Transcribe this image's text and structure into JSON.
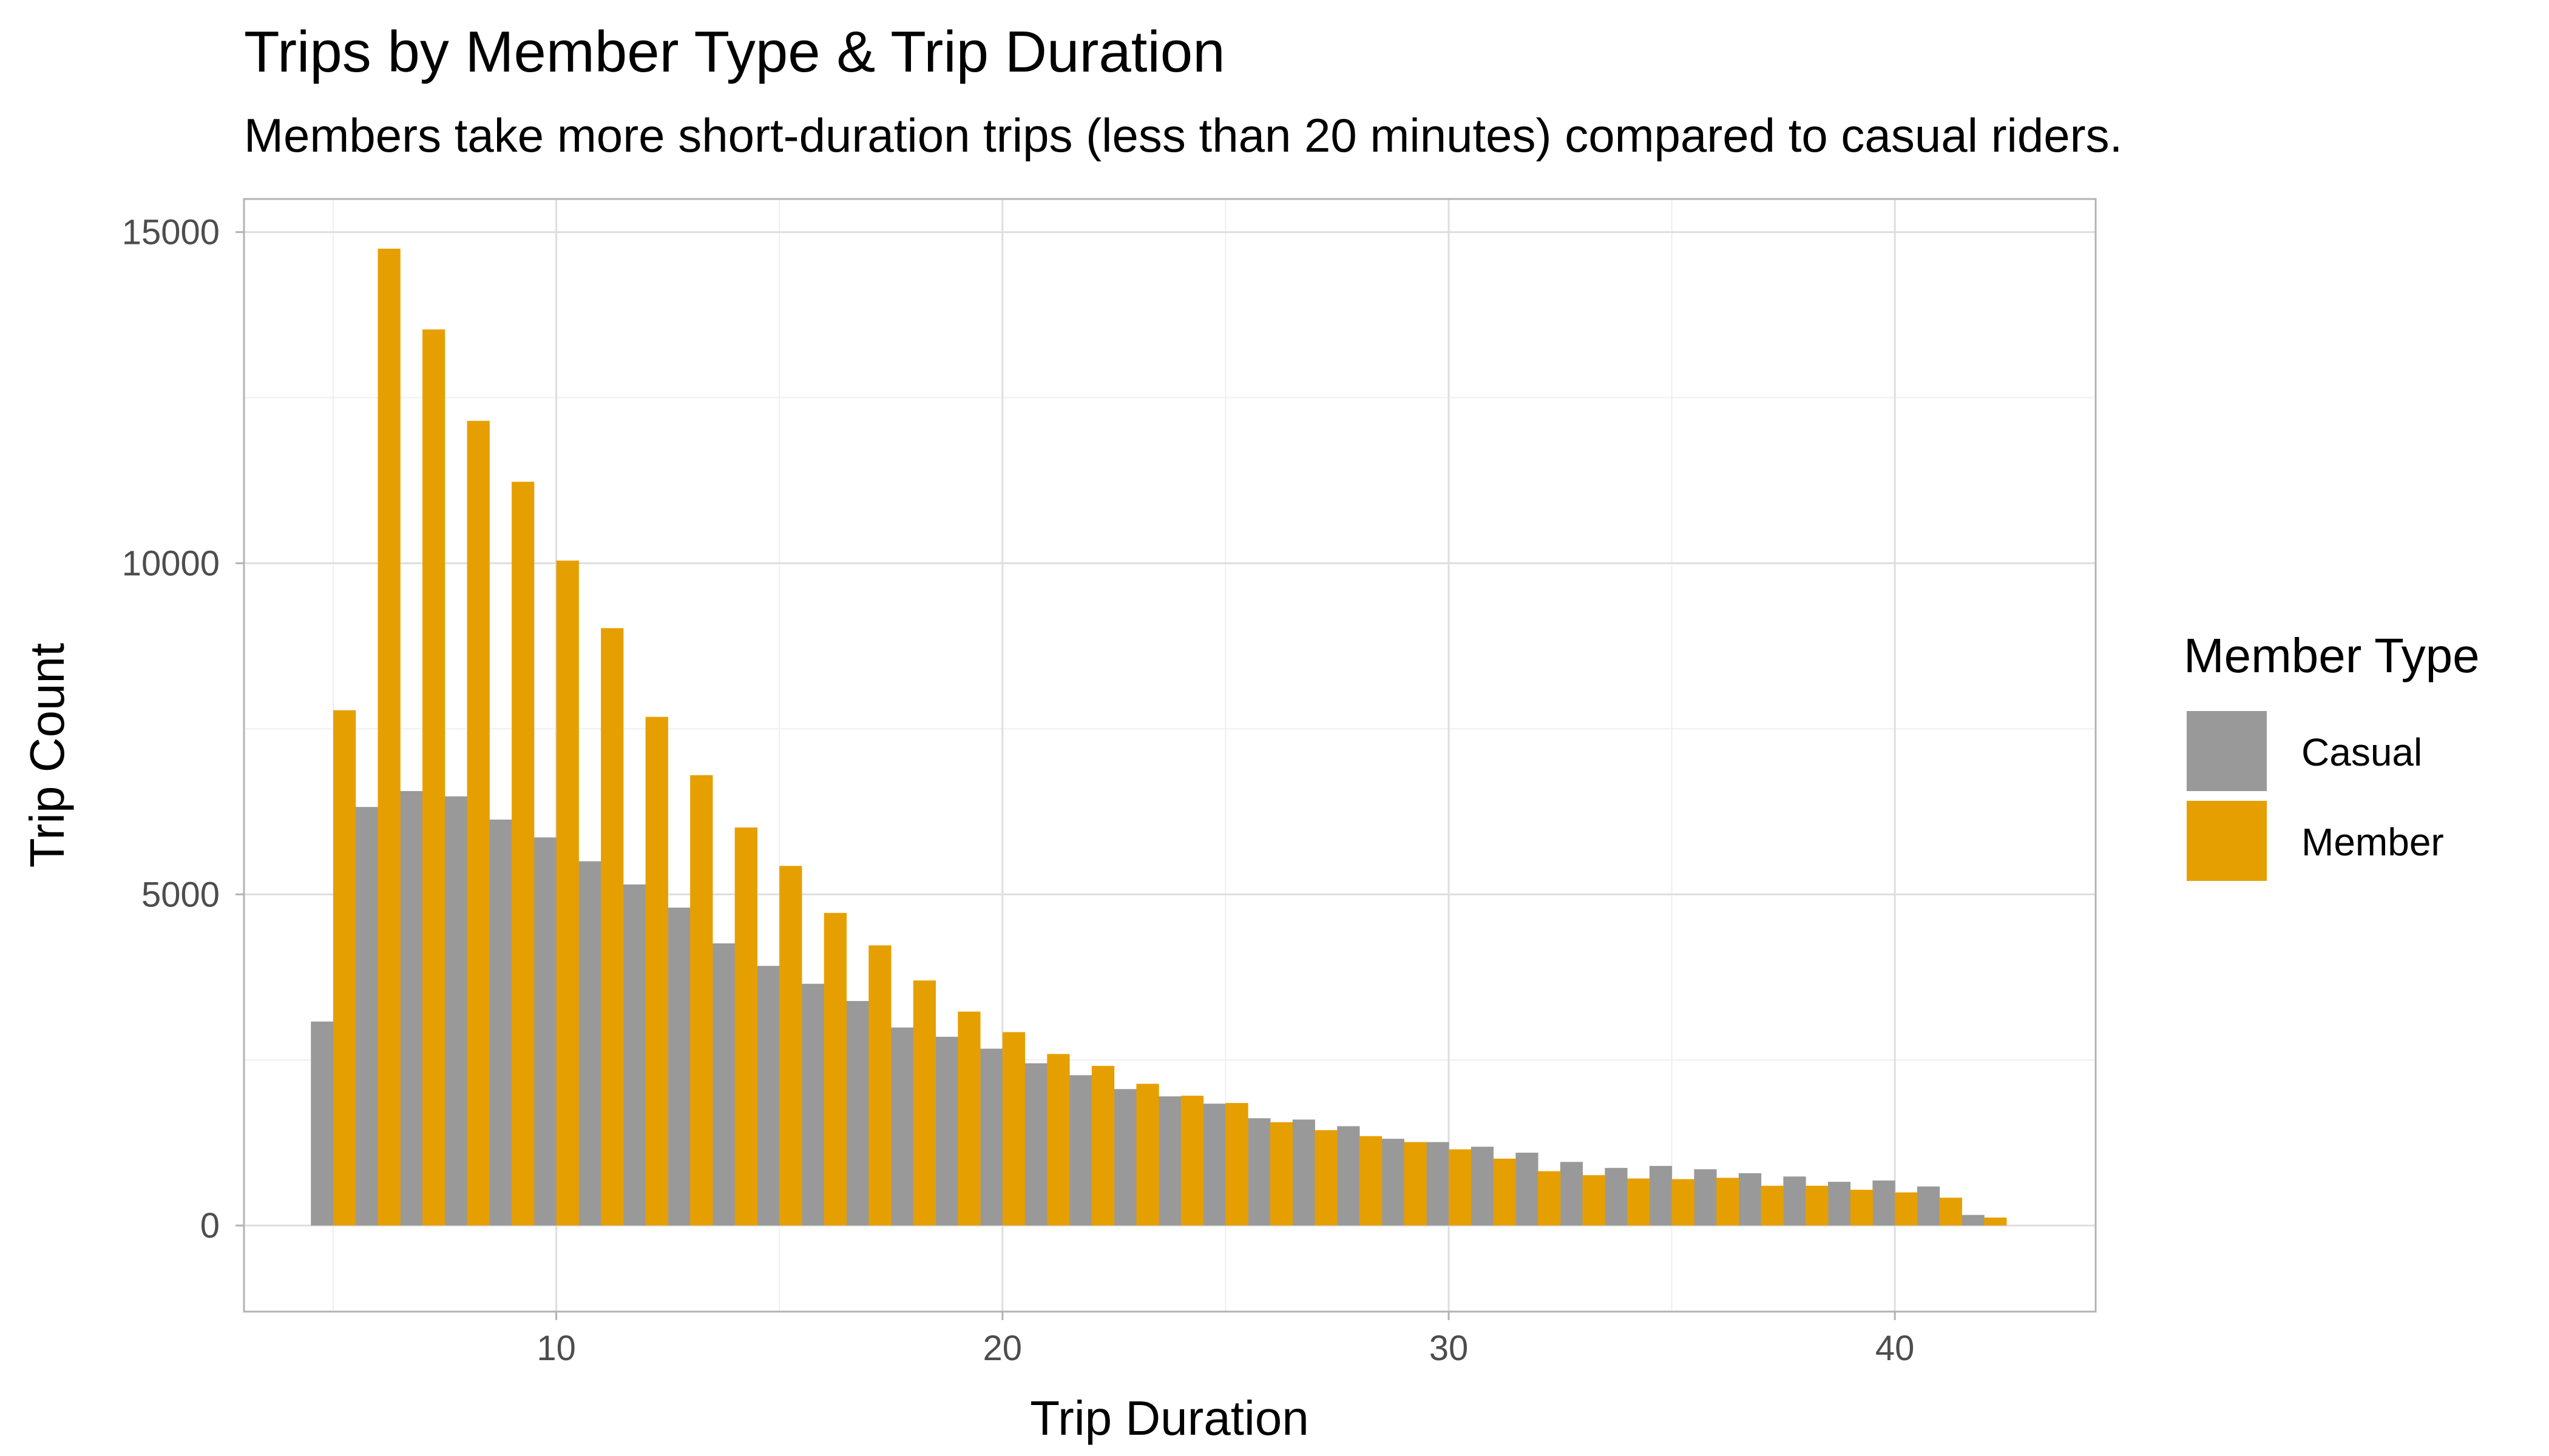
{
  "chart_data": {
    "type": "bar",
    "title": "Trips by Member Type & Trip Duration",
    "subtitle": "Members take more short-duration trips (less than 20 minutes) compared to casual riders.",
    "xlabel": "Trip Duration",
    "ylabel": "Trip Count",
    "xlim": [
      3,
      44.5
    ],
    "ylim": [
      -1300,
      15500
    ],
    "x_ticks": [
      10,
      20,
      30,
      40
    ],
    "y_ticks": [
      0,
      5000,
      10000,
      15000
    ],
    "x_tick_labels": [
      "10",
      "20",
      "30",
      "40"
    ],
    "y_tick_labels": [
      "0",
      "5000",
      "10000",
      "15000"
    ],
    "x": [
      5,
      6,
      7,
      8,
      9,
      10,
      11,
      12,
      13,
      14,
      15,
      16,
      17,
      18,
      19,
      20,
      21,
      22,
      23,
      24,
      25,
      26,
      27,
      28,
      29,
      30,
      31,
      32,
      33,
      34,
      35,
      36,
      37,
      38,
      39,
      40,
      41,
      42
    ],
    "series": [
      {
        "name": "Casual",
        "color": "#999999",
        "values": [
          3080,
          6320,
          6560,
          6480,
          6130,
          5860,
          5500,
          5150,
          4800,
          4260,
          3920,
          3650,
          3390,
          2990,
          2850,
          2670,
          2450,
          2270,
          2060,
          1950,
          1840,
          1620,
          1600,
          1500,
          1310,
          1260,
          1190,
          1100,
          960,
          870,
          900,
          850,
          790,
          740,
          660,
          680,
          590,
          160
        ]
      },
      {
        "name": "Member",
        "color": "#E69F00",
        "values": [
          7780,
          14750,
          13530,
          12150,
          11230,
          10040,
          9020,
          7680,
          6800,
          6010,
          5430,
          4720,
          4230,
          3700,
          3230,
          2920,
          2590,
          2410,
          2140,
          1960,
          1850,
          1560,
          1440,
          1350,
          1260,
          1150,
          1010,
          820,
          760,
          710,
          700,
          720,
          600,
          600,
          540,
          500,
          420,
          120
        ]
      }
    ],
    "legend": {
      "title": "Member Type",
      "position": "right",
      "items": [
        {
          "label": "Casual",
          "color": "#999999"
        },
        {
          "label": "Member",
          "color": "#E69F00"
        }
      ]
    }
  }
}
